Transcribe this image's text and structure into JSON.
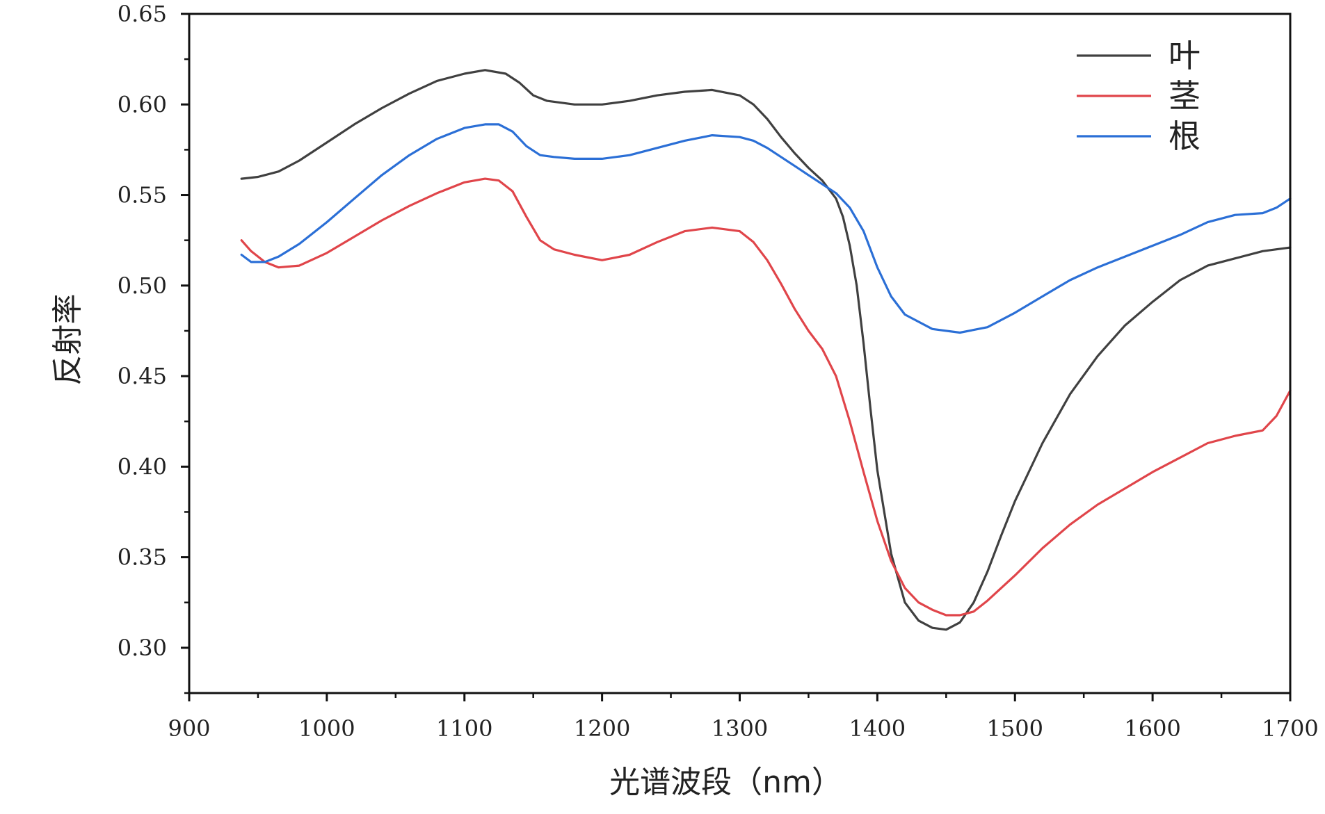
{
  "chart_data": {
    "type": "line",
    "title": "",
    "xlabel": "光谱波段（nm）",
    "ylabel": "反射率",
    "xlim": [
      900,
      1700
    ],
    "ylim": [
      0.275,
      0.65
    ],
    "xticks": [
      "900",
      "1000",
      "1100",
      "1200",
      "1300",
      "1400",
      "1500",
      "1600",
      "1700"
    ],
    "yticks": [
      "0.30",
      "0.35",
      "0.40",
      "0.45",
      "0.50",
      "0.55",
      "0.60",
      "0.65"
    ],
    "grid": false,
    "legend_position": "top-right",
    "series": [
      {
        "name": "叶",
        "color": "#404040",
        "x": [
          938,
          950,
          965,
          980,
          1000,
          1020,
          1040,
          1060,
          1080,
          1100,
          1115,
          1130,
          1140,
          1150,
          1160,
          1180,
          1200,
          1220,
          1240,
          1260,
          1280,
          1300,
          1310,
          1320,
          1330,
          1340,
          1350,
          1360,
          1370,
          1375,
          1380,
          1385,
          1390,
          1395,
          1400,
          1410,
          1420,
          1430,
          1440,
          1450,
          1460,
          1470,
          1480,
          1490,
          1500,
          1520,
          1540,
          1560,
          1580,
          1600,
          1620,
          1640,
          1660,
          1680,
          1700
        ],
        "y": [
          0.559,
          0.56,
          0.563,
          0.569,
          0.579,
          0.589,
          0.598,
          0.606,
          0.613,
          0.617,
          0.619,
          0.617,
          0.612,
          0.605,
          0.602,
          0.6,
          0.6,
          0.602,
          0.605,
          0.607,
          0.608,
          0.605,
          0.6,
          0.592,
          0.582,
          0.573,
          0.565,
          0.558,
          0.548,
          0.538,
          0.522,
          0.5,
          0.468,
          0.432,
          0.398,
          0.352,
          0.325,
          0.315,
          0.311,
          0.31,
          0.314,
          0.325,
          0.342,
          0.362,
          0.381,
          0.413,
          0.44,
          0.461,
          0.478,
          0.491,
          0.503,
          0.511,
          0.515,
          0.519,
          0.521
        ]
      },
      {
        "name": "茎",
        "color": "#e0454a",
        "x": [
          938,
          945,
          955,
          965,
          980,
          1000,
          1020,
          1040,
          1060,
          1080,
          1100,
          1115,
          1125,
          1135,
          1145,
          1155,
          1165,
          1180,
          1200,
          1220,
          1240,
          1260,
          1280,
          1300,
          1310,
          1320,
          1330,
          1340,
          1350,
          1360,
          1370,
          1380,
          1390,
          1400,
          1410,
          1420,
          1430,
          1440,
          1450,
          1460,
          1470,
          1480,
          1500,
          1520,
          1540,
          1560,
          1580,
          1600,
          1620,
          1640,
          1660,
          1680,
          1690,
          1700
        ],
        "y": [
          0.525,
          0.519,
          0.513,
          0.51,
          0.511,
          0.518,
          0.527,
          0.536,
          0.544,
          0.551,
          0.557,
          0.559,
          0.558,
          0.552,
          0.538,
          0.525,
          0.52,
          0.517,
          0.514,
          0.517,
          0.524,
          0.53,
          0.532,
          0.53,
          0.524,
          0.514,
          0.501,
          0.487,
          0.475,
          0.465,
          0.45,
          0.425,
          0.397,
          0.37,
          0.348,
          0.333,
          0.325,
          0.321,
          0.318,
          0.318,
          0.32,
          0.326,
          0.34,
          0.355,
          0.368,
          0.379,
          0.388,
          0.397,
          0.405,
          0.413,
          0.417,
          0.42,
          0.428,
          0.442
        ]
      },
      {
        "name": "根",
        "color": "#2b6fd6",
        "x": [
          938,
          945,
          955,
          965,
          980,
          1000,
          1020,
          1040,
          1060,
          1080,
          1100,
          1115,
          1125,
          1135,
          1145,
          1155,
          1165,
          1180,
          1200,
          1220,
          1240,
          1260,
          1280,
          1300,
          1310,
          1320,
          1330,
          1340,
          1350,
          1360,
          1370,
          1380,
          1390,
          1400,
          1410,
          1420,
          1440,
          1460,
          1480,
          1500,
          1520,
          1540,
          1560,
          1580,
          1600,
          1620,
          1640,
          1660,
          1680,
          1690,
          1700
        ],
        "y": [
          0.517,
          0.513,
          0.513,
          0.516,
          0.523,
          0.535,
          0.548,
          0.561,
          0.572,
          0.581,
          0.587,
          0.589,
          0.589,
          0.585,
          0.577,
          0.572,
          0.571,
          0.57,
          0.57,
          0.572,
          0.576,
          0.58,
          0.583,
          0.582,
          0.58,
          0.576,
          0.571,
          0.566,
          0.561,
          0.556,
          0.551,
          0.543,
          0.53,
          0.51,
          0.494,
          0.484,
          0.476,
          0.474,
          0.477,
          0.485,
          0.494,
          0.503,
          0.51,
          0.516,
          0.522,
          0.528,
          0.535,
          0.539,
          0.54,
          0.543,
          0.548
        ]
      }
    ]
  }
}
